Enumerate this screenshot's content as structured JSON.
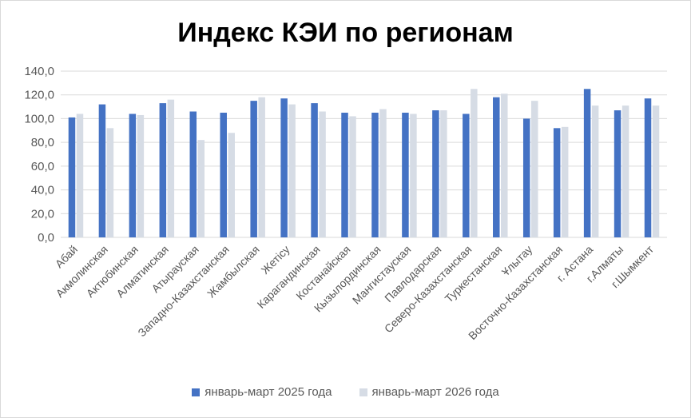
{
  "chart_data": {
    "type": "bar",
    "title": "Индекс КЭИ по регионам",
    "xlabel": "",
    "ylabel": "",
    "ylim": [
      0,
      140
    ],
    "yticks": [
      "0,0",
      "20,0",
      "40,0",
      "60,0",
      "80,0",
      "100,0",
      "120,0",
      "140,0"
    ],
    "grid": true,
    "legend_position": "bottom",
    "categories": [
      "Абай",
      "Акмолинская",
      "Актюбинская",
      "Алматинская",
      "Атырауская",
      "Западно-Казахстанская",
      "Жамбылская",
      "Жетiсу",
      "Карагандинская",
      "Костанайская",
      "Кызылординская",
      "Мангистауская",
      "Павлодарская",
      "Северо-Казахстанская",
      "Туркестанская",
      "Ұлытау",
      "Восточно-Казахстанская",
      "г. Астана",
      "г.Алматы",
      "г.Шымкент"
    ],
    "series": [
      {
        "name": "январь-март 2025 года",
        "color": "#4472c4",
        "values": [
          101,
          112,
          104,
          113,
          106,
          105,
          115,
          117,
          113,
          105,
          105,
          105,
          107,
          104,
          118,
          100,
          92,
          125,
          107,
          117
        ]
      },
      {
        "name": "январь-март 2026 года",
        "color": "#d6dce5",
        "values": [
          104,
          92,
          103,
          116,
          82,
          88,
          118,
          112,
          106,
          102,
          108,
          104,
          107,
          125,
          121,
          115,
          93,
          111,
          111,
          111
        ]
      }
    ]
  }
}
